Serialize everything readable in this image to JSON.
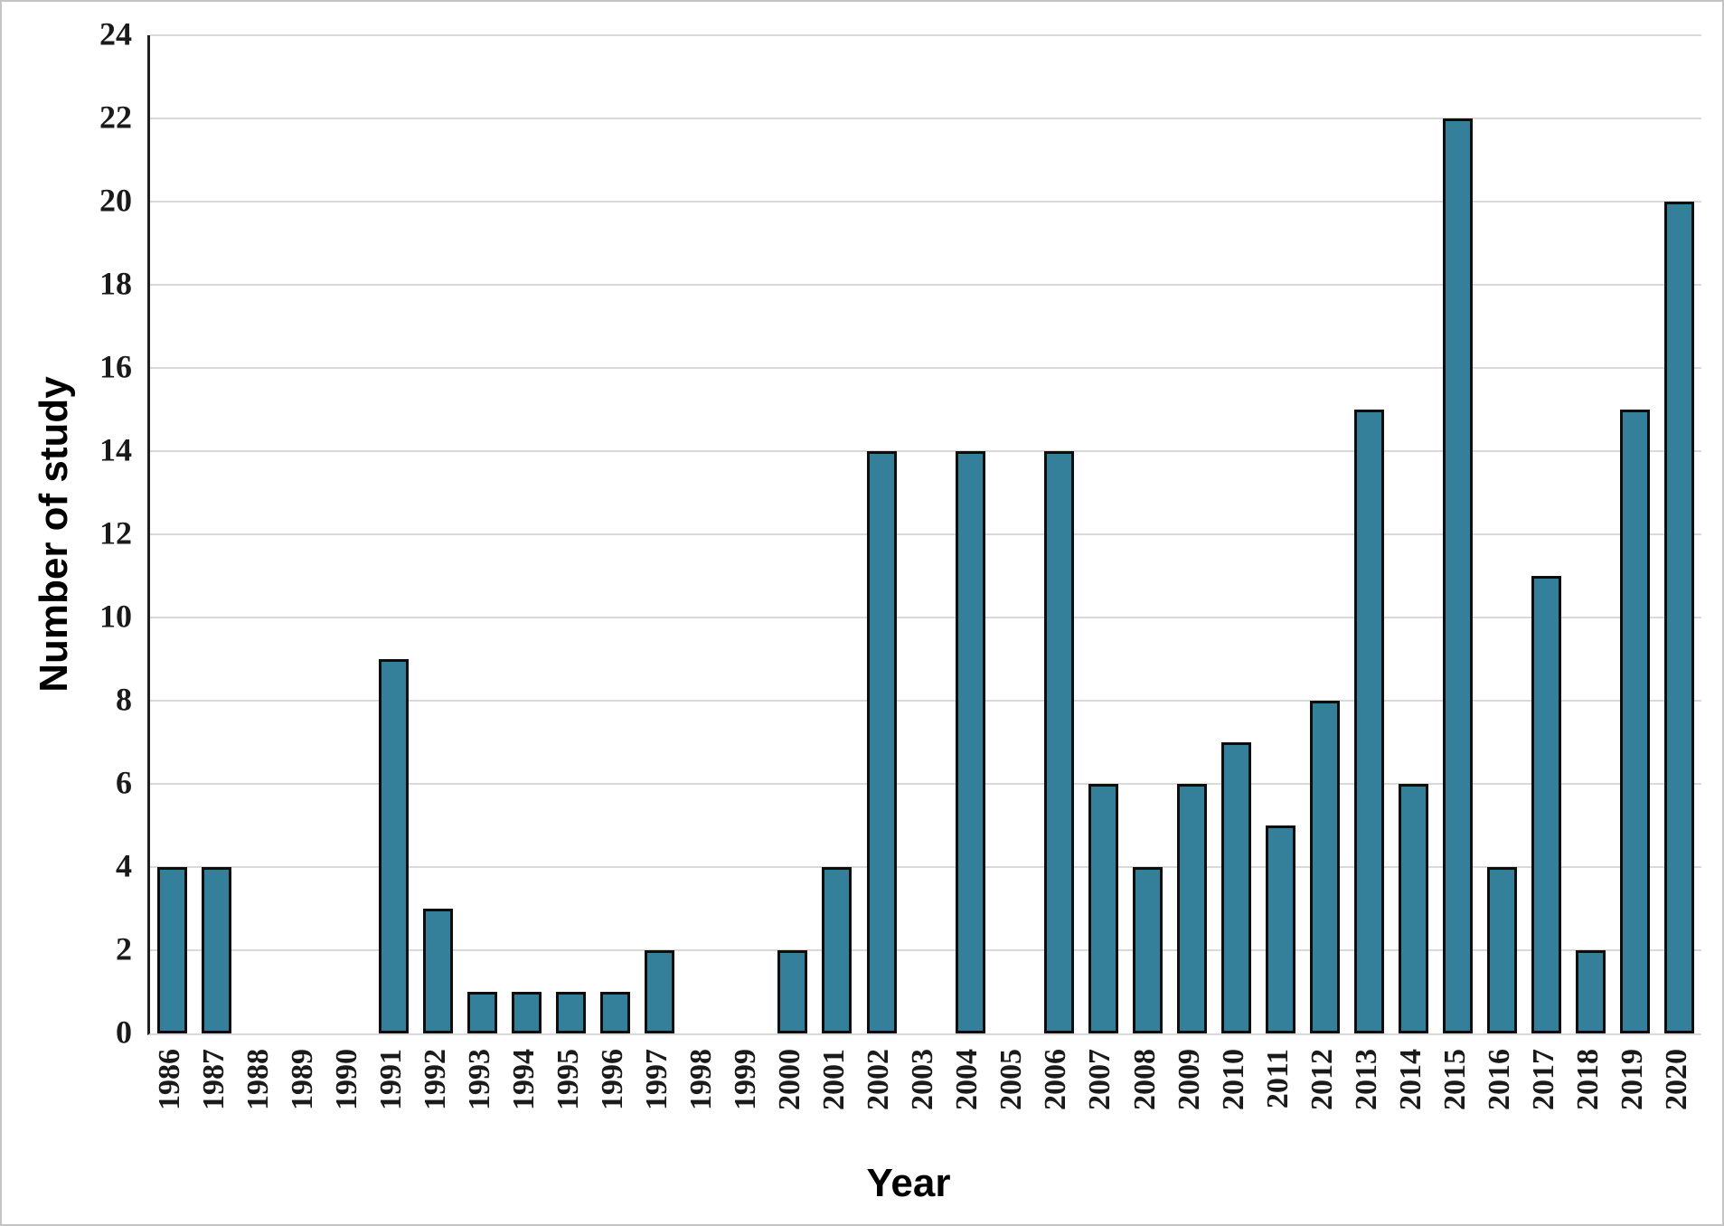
{
  "chart_data": {
    "type": "bar",
    "title": "",
    "xlabel": "Year",
    "ylabel": "Number of study",
    "categories": [
      "1986",
      "1987",
      "1988",
      "1989",
      "1990",
      "1991",
      "1992",
      "1993",
      "1994",
      "1995",
      "1996",
      "1997",
      "1998",
      "1999",
      "2000",
      "2001",
      "2002",
      "2003",
      "2004",
      "2005",
      "2006",
      "2007",
      "2008",
      "2009",
      "2010",
      "2011",
      "2012",
      "2013",
      "2014",
      "2015",
      "2016",
      "2017",
      "2018",
      "2019",
      "2020"
    ],
    "values": [
      4,
      4,
      0,
      0,
      0,
      9,
      3,
      1,
      1,
      1,
      1,
      2,
      0,
      0,
      2,
      4,
      14,
      0,
      14,
      0,
      14,
      6,
      4,
      6,
      7,
      5,
      8,
      15,
      6,
      22,
      4,
      11,
      2,
      15,
      20
    ],
    "ylim": [
      0,
      24
    ],
    "y_ticks": [
      0,
      2,
      4,
      6,
      8,
      10,
      12,
      14,
      16,
      18,
      20,
      22,
      24
    ],
    "grid": "horizontal-light-gray",
    "legend": "none",
    "colors": {
      "bar_fill": "#34809B",
      "bar_border": "#0d0d0d",
      "gridline": "#d9d9d9",
      "axis_line": "#1f1f1f",
      "text": "#1a1a1a",
      "background": "#ffffff"
    }
  }
}
